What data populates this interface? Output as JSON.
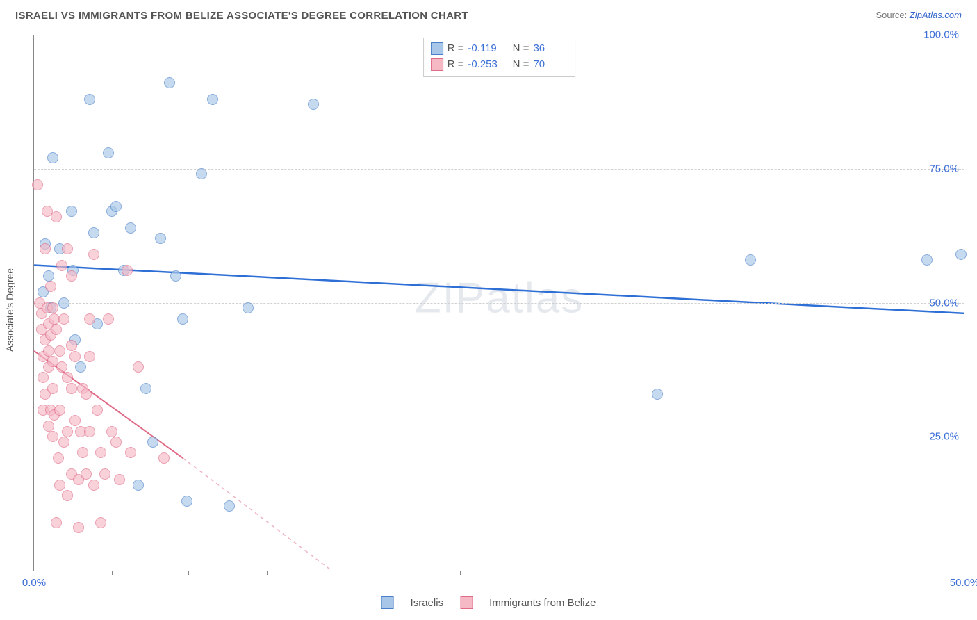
{
  "title": "ISRAELI VS IMMIGRANTS FROM BELIZE ASSOCIATE'S DEGREE CORRELATION CHART",
  "source_prefix": "Source: ",
  "source_link": "ZipAtlas.com",
  "ylabel": "Associate's Degree",
  "watermark": "ZIPatlas",
  "chart": {
    "type": "scatter",
    "background_color": "#ffffff",
    "grid_color": "#d0d0d0",
    "axis_color": "#888888",
    "tick_label_color": "#3b6fd6",
    "label_fontsize": 14,
    "tick_fontsize": 15,
    "xlim": [
      0,
      50
    ],
    "ylim": [
      0,
      100
    ],
    "yticks": [
      25,
      50,
      75,
      100
    ],
    "ytick_labels": [
      "25.0%",
      "50.0%",
      "75.0%",
      "100.0%"
    ],
    "xticks_positions": [
      0,
      4.2,
      8.3,
      12.5,
      16.7,
      22.9,
      50
    ],
    "x_origin_label": "0.0%",
    "x_end_label": "50.0%",
    "series": [
      {
        "name": "Israelis",
        "marker_color_fill": "#a8c7e8",
        "marker_color_stroke": "#4a7fc9",
        "marker_radius": 8,
        "marker_opacity": 0.65,
        "line_color": "#2e6fd6",
        "line_width": 2.5,
        "R": "-0.119",
        "N": "36",
        "trend": {
          "y_at_x0": 57,
          "y_at_x50": 48
        },
        "points": [
          [
            0.5,
            52
          ],
          [
            0.6,
            61
          ],
          [
            0.8,
            55
          ],
          [
            0.9,
            49
          ],
          [
            1.0,
            77
          ],
          [
            1.4,
            60
          ],
          [
            1.6,
            50
          ],
          [
            2.0,
            67
          ],
          [
            2.1,
            56
          ],
          [
            2.2,
            43
          ],
          [
            2.5,
            38
          ],
          [
            3.0,
            88
          ],
          [
            3.2,
            63
          ],
          [
            3.4,
            46
          ],
          [
            4.0,
            78
          ],
          [
            4.2,
            67
          ],
          [
            4.4,
            68
          ],
          [
            4.8,
            56
          ],
          [
            5.2,
            64
          ],
          [
            5.6,
            16
          ],
          [
            6.0,
            34
          ],
          [
            6.4,
            24
          ],
          [
            6.8,
            62
          ],
          [
            7.3,
            91
          ],
          [
            7.6,
            55
          ],
          [
            8.0,
            47
          ],
          [
            8.2,
            13
          ],
          [
            9.0,
            74
          ],
          [
            9.6,
            88
          ],
          [
            10.5,
            12
          ],
          [
            11.5,
            49
          ],
          [
            15.0,
            87
          ],
          [
            33.5,
            33
          ],
          [
            38.5,
            58
          ],
          [
            48,
            58
          ],
          [
            49.8,
            59
          ]
        ]
      },
      {
        "name": "Immigrants from Belize",
        "marker_color_fill": "#f5b9c6",
        "marker_color_stroke": "#e06b87",
        "marker_radius": 8,
        "marker_opacity": 0.65,
        "line_color": "#e06b87",
        "line_width": 2,
        "R": "-0.253",
        "N": "70",
        "trend": {
          "y_at_x0": 41,
          "y_at_x_solid_end": 21,
          "x_solid_end": 8,
          "y_at_x_dash_end": 0,
          "x_dash_end": 16
        },
        "points": [
          [
            0.2,
            72
          ],
          [
            0.3,
            50
          ],
          [
            0.4,
            48
          ],
          [
            0.4,
            45
          ],
          [
            0.5,
            40
          ],
          [
            0.5,
            36
          ],
          [
            0.5,
            30
          ],
          [
            0.6,
            60
          ],
          [
            0.6,
            43
          ],
          [
            0.6,
            33
          ],
          [
            0.7,
            67
          ],
          [
            0.7,
            49
          ],
          [
            0.8,
            41
          ],
          [
            0.8,
            46
          ],
          [
            0.8,
            38
          ],
          [
            0.8,
            27
          ],
          [
            0.9,
            53
          ],
          [
            0.9,
            44
          ],
          [
            0.9,
            30
          ],
          [
            1.0,
            49
          ],
          [
            1.0,
            39
          ],
          [
            1.0,
            34
          ],
          [
            1.0,
            25
          ],
          [
            1.1,
            47
          ],
          [
            1.1,
            29
          ],
          [
            1.2,
            9
          ],
          [
            1.2,
            45
          ],
          [
            1.2,
            66
          ],
          [
            1.3,
            21
          ],
          [
            1.4,
            16
          ],
          [
            1.4,
            41
          ],
          [
            1.4,
            30
          ],
          [
            1.5,
            38
          ],
          [
            1.5,
            57
          ],
          [
            1.6,
            24
          ],
          [
            1.6,
            47
          ],
          [
            1.8,
            14
          ],
          [
            1.8,
            26
          ],
          [
            1.8,
            36
          ],
          [
            1.8,
            60
          ],
          [
            2.0,
            42
          ],
          [
            2.0,
            34
          ],
          [
            2.0,
            55
          ],
          [
            2.0,
            18
          ],
          [
            2.2,
            28
          ],
          [
            2.2,
            40
          ],
          [
            2.4,
            17
          ],
          [
            2.4,
            8
          ],
          [
            2.5,
            26
          ],
          [
            2.6,
            22
          ],
          [
            2.6,
            34
          ],
          [
            2.8,
            33
          ],
          [
            2.8,
            18
          ],
          [
            3.0,
            40
          ],
          [
            3.0,
            47
          ],
          [
            3.0,
            26
          ],
          [
            3.2,
            16
          ],
          [
            3.2,
            59
          ],
          [
            3.4,
            30
          ],
          [
            3.6,
            9
          ],
          [
            3.6,
            22
          ],
          [
            3.8,
            18
          ],
          [
            4.0,
            47
          ],
          [
            4.2,
            26
          ],
          [
            4.4,
            24
          ],
          [
            4.6,
            17
          ],
          [
            5.0,
            56
          ],
          [
            5.2,
            22
          ],
          [
            5.6,
            38
          ],
          [
            7.0,
            21
          ]
        ]
      }
    ]
  },
  "legend_bottom": [
    {
      "swatch_fill": "#a8c7e8",
      "swatch_stroke": "#4a7fc9",
      "label": "Israelis"
    },
    {
      "swatch_fill": "#f5b9c6",
      "swatch_stroke": "#e06b87",
      "label": "Immigrants from Belize"
    }
  ]
}
